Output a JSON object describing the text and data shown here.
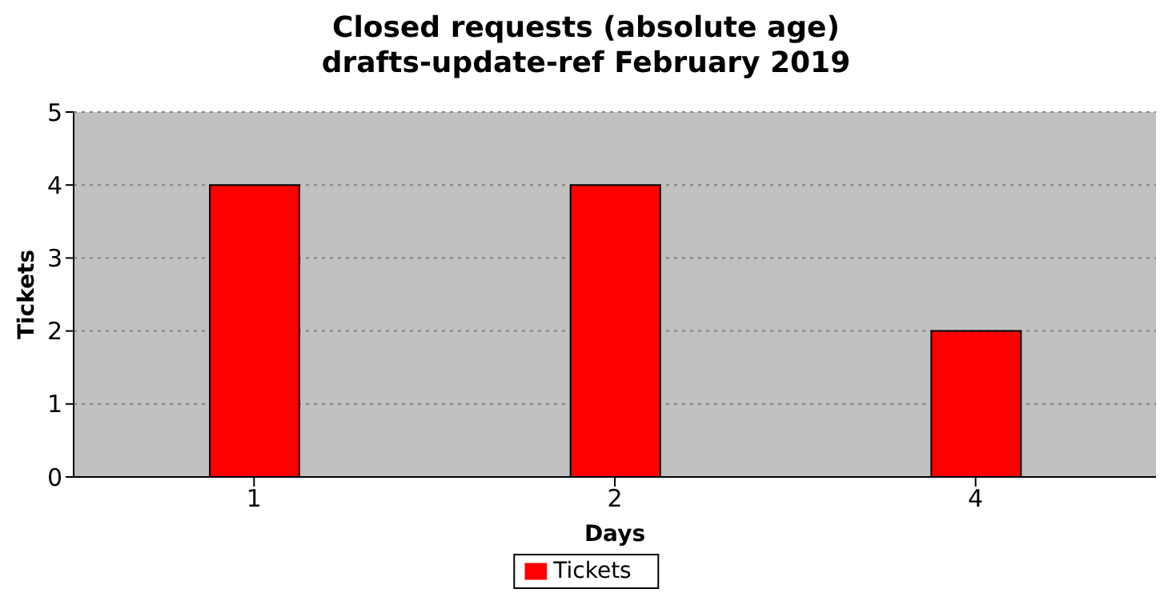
{
  "chart_data": {
    "type": "bar",
    "title": "Closed requests (absolute age)\ndrafts-update-ref February 2019",
    "xlabel": "Days",
    "ylabel": "Tickets",
    "categories": [
      "1",
      "2",
      "4"
    ],
    "series": [
      {
        "name": "Tickets",
        "color": "#ff0000",
        "values": [
          4,
          4,
          2
        ]
      }
    ],
    "ylim": [
      0,
      5
    ],
    "yticks": [
      0,
      1,
      2,
      3,
      4,
      5
    ],
    "grid": "y",
    "legend": "bottom"
  }
}
